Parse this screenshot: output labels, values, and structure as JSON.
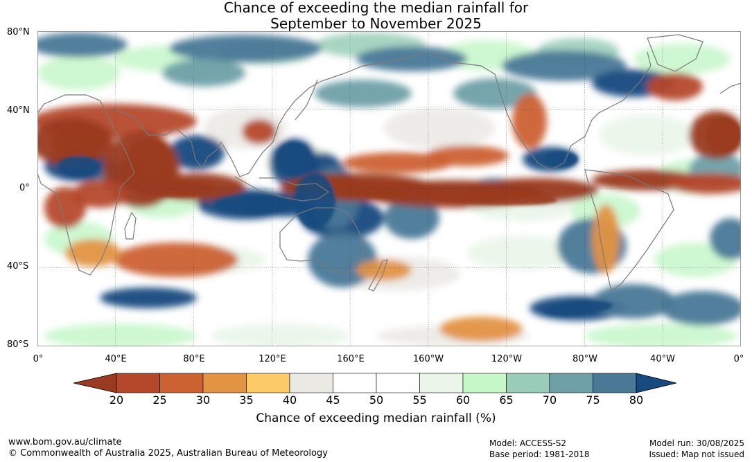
{
  "title_line1": "Chance of exceeding the median rainfall for",
  "title_line2": "September to November 2025",
  "map": {
    "lat_labels": [
      "80°N",
      "40°N",
      "0°",
      "40°S",
      "80°S"
    ],
    "lon_labels": [
      "0°",
      "40°E",
      "80°E",
      "120°E",
      "160°E",
      "160°W",
      "120°W",
      "80°W",
      "40°W",
      "0°"
    ],
    "palette": {
      "c20": "#9a3a20",
      "c25": "#b5482b",
      "c30": "#cc6131",
      "c35": "#e39443",
      "c40": "#fcca66",
      "c45": "#ebe9e4",
      "c50": "#ffffff",
      "c55": "#ffffff",
      "c60": "#e9f6e8",
      "c65": "#c5f7c9",
      "c70": "#99cdb7",
      "c75": "#6fa0a8",
      "c80": "#4a7897",
      "c80plus": "#174a7e"
    }
  },
  "colorbar": {
    "ticks": [
      "20",
      "25",
      "30",
      "35",
      "40",
      "45",
      "50",
      "55",
      "60",
      "65",
      "70",
      "75",
      "80"
    ],
    "colors": [
      "#b5482b",
      "#cc6131",
      "#e39443",
      "#fcca66",
      "#ebe9e4",
      "#ffffff",
      "#ffffff",
      "#e9f6e8",
      "#c5f7c9",
      "#99cdb7",
      "#6fa0a8",
      "#4a7897"
    ],
    "low_color": "#9a3a20",
    "high_color": "#174a7e",
    "label": "Chance of exceeding median rainfall (%)"
  },
  "footer": {
    "url": "www.bom.gov.au/climate",
    "copyright": "© Commonwealth of Australia 2025, Australian Bureau of Meteorology",
    "model": "Model: ACCESS-S2",
    "base_period": "Base period: 1981-2018",
    "model_run": "Model run: 30/08/2025",
    "issued": "Issued: Map not issued"
  }
}
